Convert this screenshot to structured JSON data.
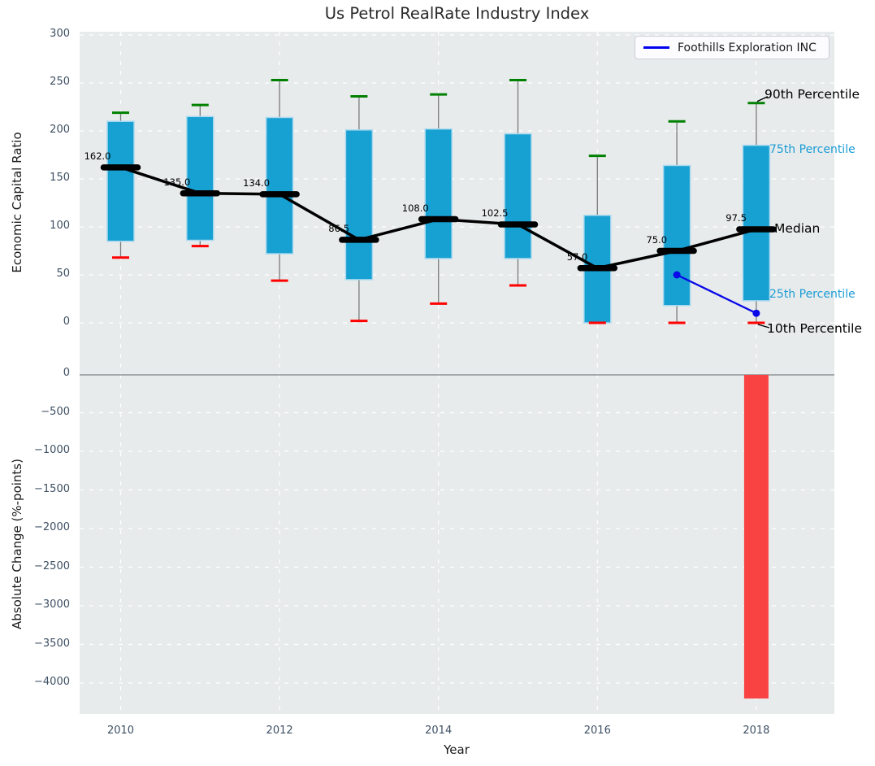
{
  "chart_data": {
    "type": "boxplot",
    "title": "Us Petrol RealRate Industry Index",
    "xlabel": "Year",
    "grid": true,
    "legend_position": "upper right",
    "x_tick_years": [
      2010,
      2012,
      2014,
      2016,
      2018
    ],
    "x_tick_labels": [
      "2010",
      "2012",
      "2014",
      "2016",
      "2018"
    ],
    "xlim": [
      2009.45,
      2019.0
    ],
    "top_panel": {
      "ylabel": "Economic Capital Ratio",
      "ylim": [
        -53,
        303
      ],
      "y_ticks": [
        {
          "v": 300,
          "label": "300"
        },
        {
          "v": 250,
          "label": "250"
        },
        {
          "v": 200,
          "label": "200"
        },
        {
          "v": 150,
          "label": "150"
        },
        {
          "v": 100,
          "label": "100"
        },
        {
          "v": 50,
          "label": "50"
        },
        {
          "v": 0,
          "label": "0"
        }
      ],
      "boxes": [
        {
          "year": 2010,
          "p90": 219,
          "p75": 210,
          "median": 162,
          "p25": 85,
          "p10": 68,
          "median_label": "162.0"
        },
        {
          "year": 2011,
          "p90": 227,
          "p75": 215,
          "median": 135,
          "p25": 86,
          "p10": 80,
          "median_label": "135.0"
        },
        {
          "year": 2012,
          "p90": 253,
          "p75": 214,
          "median": 134,
          "p25": 72,
          "p10": 44,
          "median_label": "134.0"
        },
        {
          "year": 2013,
          "p90": 236,
          "p75": 201,
          "median": 86.5,
          "p25": 45,
          "p10": 2,
          "median_label": "86.5"
        },
        {
          "year": 2014,
          "p90": 238,
          "p75": 202,
          "median": 108,
          "p25": 67,
          "p10": 20,
          "median_label": "108.0"
        },
        {
          "year": 2015,
          "p90": 253,
          "p75": 197,
          "median": 102.5,
          "p25": 67,
          "p10": 39,
          "median_label": "102.5"
        },
        {
          "year": 2016,
          "p90": 174,
          "p75": 112,
          "median": 57,
          "p25": 0,
          "p10": 0,
          "median_label": "57.0"
        },
        {
          "year": 2017,
          "p90": 210,
          "p75": 164,
          "median": 75,
          "p25": 18,
          "p10": 0,
          "median_label": "75.0"
        },
        {
          "year": 2018,
          "p90": 229,
          "p75": 185,
          "median": 97.5,
          "p25": 23,
          "p10": 0,
          "median_label": "97.5"
        }
      ],
      "annotations": [
        {
          "text": "90th Percentile",
          "color": "#000000",
          "anchor": "p90"
        },
        {
          "text": "75th Percentile",
          "color": "#1b9cd6",
          "anchor": "p75"
        },
        {
          "text": "Median",
          "color": "#000000",
          "anchor": "median"
        },
        {
          "text": "25th Percentile",
          "color": "#1b9cd6",
          "anchor": "p25"
        },
        {
          "text": "10th Percentile",
          "color": "#000000",
          "anchor": "p10"
        }
      ]
    },
    "bottom_panel": {
      "ylabel": "Absolute Change (%-points)",
      "ylim": [
        -4400,
        0
      ],
      "y_ticks": [
        {
          "v": 0,
          "label": "0"
        },
        {
          "v": -500,
          "label": "−500"
        },
        {
          "v": -1000,
          "label": "−1000"
        },
        {
          "v": -1500,
          "label": "−1500"
        },
        {
          "v": -2000,
          "label": "−2000"
        },
        {
          "v": -2500,
          "label": "−2500"
        },
        {
          "v": -3000,
          "label": "−3000"
        },
        {
          "v": -3500,
          "label": "−3500"
        },
        {
          "v": -4000,
          "label": "−4000"
        }
      ],
      "bars": [
        {
          "year": 2018,
          "value": -4200
        }
      ]
    },
    "company_line": {
      "label": "Foothills Exploration INC",
      "points": [
        {
          "year": 2017,
          "value": 50
        },
        {
          "year": 2018,
          "value": 10
        }
      ]
    },
    "colors": {
      "box_fill": "#17a0d2",
      "box_edge": "#a9d9ef",
      "whisker": "#7a7a7a",
      "cap_high": "#008000",
      "cap_low": "#ff0000",
      "median": "#000000",
      "company": "#0808e8",
      "bar": "#f94343",
      "plot_bg": "#e8ebeb",
      "grid": "#ffffff",
      "tick": "#3d4f63",
      "annotation_blue": "#1b9cd6",
      "zero_line": "#a6a9ac"
    }
  }
}
